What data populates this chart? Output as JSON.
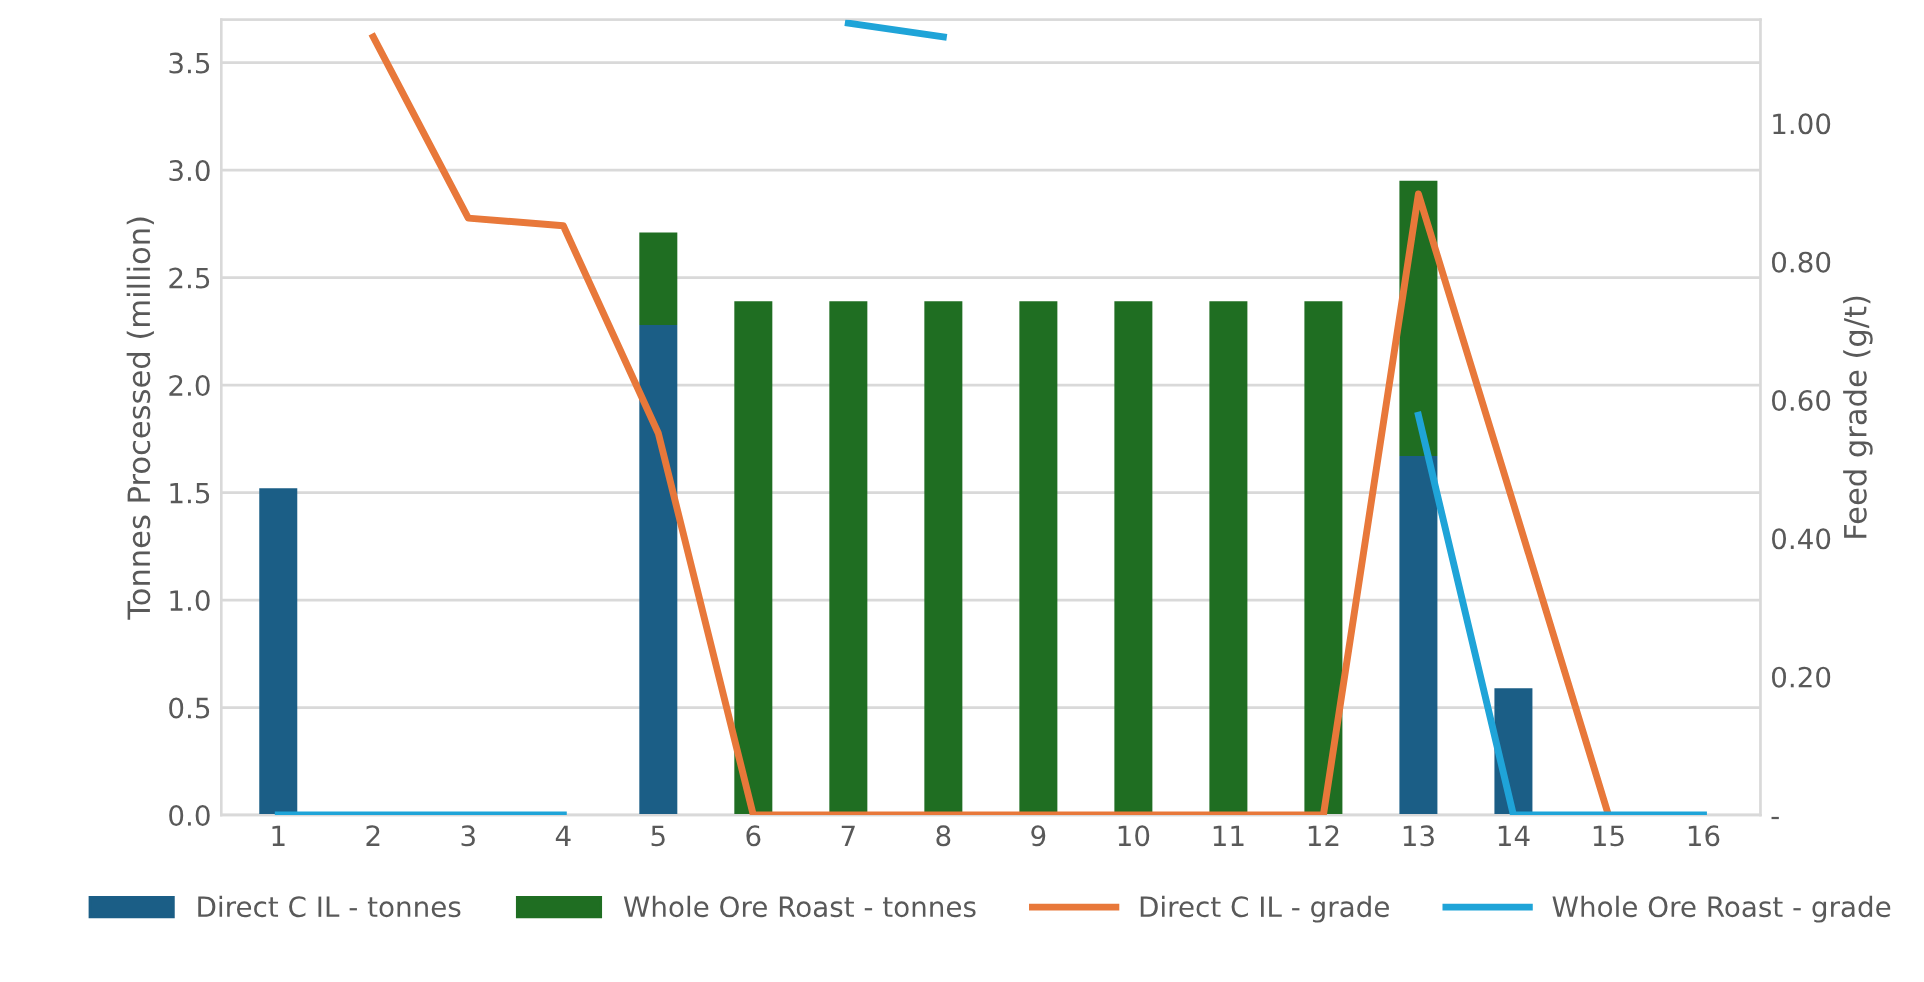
{
  "chart_data": {
    "type": "bar",
    "stacked": true,
    "ylabel": "Tonnes Processed (million)",
    "y2label": "Feed grade (g/t)",
    "categories": [
      "1",
      "2",
      "3",
      "4",
      "5",
      "6",
      "7",
      "8",
      "9",
      "10",
      "11",
      "12",
      "13",
      "14",
      "15",
      "16"
    ],
    "series": [
      {
        "name": "Direct C IL - tonnes",
        "color": "#1b5e86",
        "values": [
          1.52,
          null,
          null,
          null,
          2.28,
          0,
          0,
          0,
          0,
          0,
          0,
          0,
          1.67,
          0.59,
          0,
          0
        ]
      },
      {
        "name": "Whole Ore Roast - tonnes",
        "color": "#1f6e22",
        "values": [
          0,
          0,
          0,
          0,
          0.43,
          2.39,
          2.39,
          2.39,
          2.39,
          2.39,
          2.39,
          2.39,
          1.28,
          0,
          0,
          0
        ]
      },
      {
        "name": "Direct C IL - grade",
        "type": "line",
        "axis": "y2",
        "color": "#e8783a",
        "values": [
          null,
          1.125,
          0.863,
          0.852,
          0.552,
          0,
          0,
          0,
          0,
          0,
          0,
          0,
          0.898,
          0.45,
          0,
          null
        ]
      },
      {
        "name": "Whole Ore Roast - grade",
        "type": "line",
        "axis": "y2",
        "color": "#1fa4d8",
        "values": [
          0,
          0,
          0,
          0,
          null,
          null,
          1.145,
          1.125,
          null,
          null,
          null,
          null,
          0.578,
          0,
          0,
          0
        ]
      }
    ],
    "ylim": [
      0,
      3.7
    ],
    "yticks": [
      {
        "value": 0,
        "label": "0.0"
      },
      0.5,
      {
        "value": 1,
        "label": "1.0"
      },
      1.5,
      {
        "value": 2,
        "label": "2.0"
      },
      2.5,
      {
        "value": 3,
        "label": "3.0"
      },
      3.5
    ],
    "y2lim": [
      0,
      1.15
    ],
    "y2ticks": [
      {
        "value": 0,
        "label": "-"
      },
      {
        "value": 0.2,
        "label": "0.20"
      },
      {
        "value": 0.4,
        "label": "0.40"
      },
      {
        "value": 0.6,
        "label": "0.60"
      },
      {
        "value": 0.8,
        "label": "0.80"
      },
      {
        "value": 1,
        "label": "1.00"
      }
    ],
    "grid": "y",
    "legend": "bottom",
    "marker": "none",
    "line_style": "solid"
  }
}
